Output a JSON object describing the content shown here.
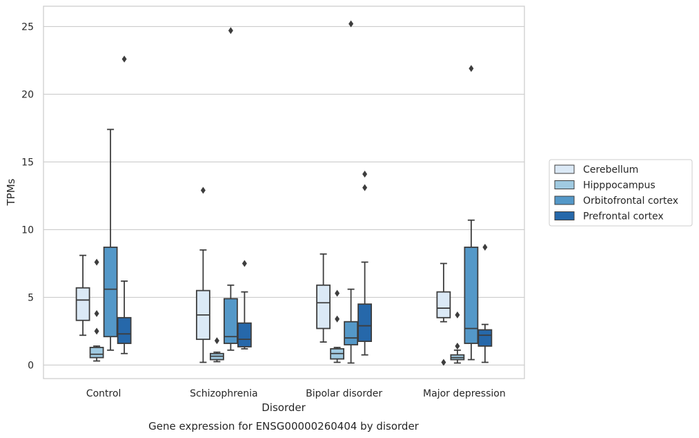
{
  "chart_data": {
    "type": "box",
    "caption": "Gene expression for ENSG00000260404 by disorder",
    "xlabel": "Disorder",
    "ylabel": "TPMs",
    "ylim": [
      -1,
      26.5
    ],
    "yticks": [
      0,
      5,
      10,
      15,
      20,
      25
    ],
    "grid": "horizontal",
    "legend_position": "right",
    "categories": [
      "Control",
      "Schizophrenia",
      "Bipolar disorder",
      "Major depression"
    ],
    "series": [
      {
        "name": "Cerebellum",
        "color": "#dbe9f6",
        "boxes": [
          {
            "whisker_low": 2.2,
            "q1": 3.3,
            "median": 4.8,
            "q3": 5.7,
            "whisker_high": 8.1,
            "outliers": []
          },
          {
            "whisker_low": 0.2,
            "q1": 1.9,
            "median": 3.7,
            "q3": 5.5,
            "whisker_high": 8.5,
            "outliers": [
              12.9
            ]
          },
          {
            "whisker_low": 1.7,
            "q1": 2.7,
            "median": 4.6,
            "q3": 5.9,
            "whisker_high": 8.2,
            "outliers": []
          },
          {
            "whisker_low": 3.2,
            "q1": 3.5,
            "median": 4.2,
            "q3": 5.4,
            "whisker_high": 7.5,
            "outliers": [
              0.2
            ]
          }
        ]
      },
      {
        "name": "Hipppocampus",
        "color": "#a0cae1",
        "boxes": [
          {
            "whisker_low": 0.3,
            "q1": 0.55,
            "median": 0.8,
            "q3": 1.3,
            "whisker_high": 1.4,
            "outliers": [
              7.6,
              3.8,
              2.5
            ]
          },
          {
            "whisker_low": 0.25,
            "q1": 0.4,
            "median": 0.65,
            "q3": 0.85,
            "whisker_high": 0.95,
            "outliers": [
              1.8
            ]
          },
          {
            "whisker_low": 0.2,
            "q1": 0.45,
            "median": 0.85,
            "q3": 1.2,
            "whisker_high": 1.3,
            "outliers": [
              5.3,
              3.4
            ]
          },
          {
            "whisker_low": 0.15,
            "q1": 0.4,
            "median": 0.55,
            "q3": 0.75,
            "whisker_high": 1.1,
            "outliers": [
              3.7,
              1.4
            ]
          }
        ]
      },
      {
        "name": "Orbitofrontal cortex",
        "color": "#5498c8",
        "boxes": [
          {
            "whisker_low": 1.1,
            "q1": 2.1,
            "median": 5.6,
            "q3": 8.7,
            "whisker_high": 17.4,
            "outliers": []
          },
          {
            "whisker_low": 1.1,
            "q1": 1.6,
            "median": 2.1,
            "q3": 4.9,
            "whisker_high": 5.9,
            "outliers": [
              24.7
            ]
          },
          {
            "whisker_low": 0.15,
            "q1": 1.5,
            "median": 2.0,
            "q3": 3.2,
            "whisker_high": 5.6,
            "outliers": [
              25.2
            ]
          },
          {
            "whisker_low": 0.4,
            "q1": 1.6,
            "median": 2.7,
            "q3": 8.7,
            "whisker_high": 10.7,
            "outliers": [
              21.9
            ]
          }
        ]
      },
      {
        "name": "Prefrontal cortex",
        "color": "#2668aa",
        "boxes": [
          {
            "whisker_low": 0.85,
            "q1": 1.6,
            "median": 2.3,
            "q3": 3.5,
            "whisker_high": 6.2,
            "outliers": [
              22.6
            ]
          },
          {
            "whisker_low": 1.2,
            "q1": 1.35,
            "median": 1.9,
            "q3": 3.1,
            "whisker_high": 5.4,
            "outliers": [
              7.5
            ]
          },
          {
            "whisker_low": 0.75,
            "q1": 1.75,
            "median": 2.9,
            "q3": 4.5,
            "whisker_high": 7.6,
            "outliers": [
              14.1,
              13.1
            ]
          },
          {
            "whisker_low": 0.2,
            "q1": 1.4,
            "median": 2.2,
            "q3": 2.6,
            "whisker_high": 3.0,
            "outliers": [
              8.7
            ]
          }
        ]
      }
    ]
  }
}
